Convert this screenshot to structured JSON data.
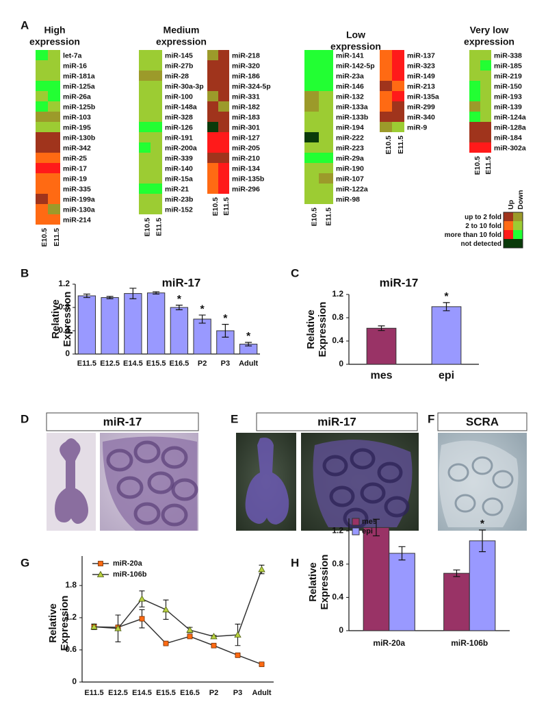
{
  "panel_labels": [
    "A",
    "B",
    "C",
    "D",
    "E",
    "F",
    "G",
    "H"
  ],
  "heatmap": {
    "groups": [
      {
        "title_lines": [
          "High",
          "expression"
        ],
        "blocks": [
          {
            "columns": [
              "E10.5",
              "E11.5"
            ],
            "rows": [
              {
                "label": "let-7a",
                "colors": [
                  "#22ff33",
                  "#9ccc33"
                ]
              },
              {
                "label": "miR-16",
                "colors": [
                  "#9ccc33",
                  "#9ccc33"
                ]
              },
              {
                "label": "miR-181a",
                "colors": [
                  "#9ccc33",
                  "#9ccc33"
                ]
              },
              {
                "label": "miR-125a",
                "colors": [
                  "#22ff33",
                  "#22ff33"
                ]
              },
              {
                "label": "miR-26a",
                "colors": [
                  "#9ccc33",
                  "#22ff33"
                ]
              },
              {
                "label": "miR-125b",
                "colors": [
                  "#22ff33",
                  "#9ccc33"
                ]
              },
              {
                "label": "miR-103",
                "colors": [
                  "#9c9a2a",
                  "#9c9a2a"
                ]
              },
              {
                "label": "miR-195",
                "colors": [
                  "#9ccc33",
                  "#9ccc33"
                ]
              },
              {
                "label": "miR-130b",
                "colors": [
                  "#a0341c",
                  "#a0341c"
                ]
              },
              {
                "label": "miR-342",
                "colors": [
                  "#a0341c",
                  "#a0341c"
                ]
              },
              {
                "label": "miR-25",
                "colors": [
                  "#ff6a13",
                  "#ff6a13"
                ]
              },
              {
                "label": "miR-17",
                "colors": [
                  "#ff1a1a",
                  "#ff1a1a"
                ]
              },
              {
                "label": "miR-19",
                "colors": [
                  "#ff6a13",
                  "#ff6a13"
                ]
              },
              {
                "label": "miR-335",
                "colors": [
                  "#ff6a13",
                  "#ff6a13"
                ]
              },
              {
                "label": "miR-199a",
                "colors": [
                  "#a0341c",
                  "#ff6a13"
                ]
              },
              {
                "label": "miR-130a",
                "colors": [
                  "#ff6a13",
                  "#9c9a2a"
                ]
              },
              {
                "label": "miR-214",
                "colors": [
                  "#ff6a13",
                  "#ff6a13"
                ]
              }
            ]
          }
        ]
      },
      {
        "title_lines": [
          "Medium",
          "expression"
        ],
        "blocks": [
          {
            "columns": [
              "E10.5",
              "E11.5"
            ],
            "rows": [
              {
                "label": "miR-145",
                "colors": [
                  "#9ccc33",
                  "#9ccc33"
                ]
              },
              {
                "label": "miR-27b",
                "colors": [
                  "#9ccc33",
                  "#9ccc33"
                ]
              },
              {
                "label": "miR-28",
                "colors": [
                  "#9c9a2a",
                  "#9c9a2a"
                ]
              },
              {
                "label": "miR-30a-3p",
                "colors": [
                  "#9ccc33",
                  "#9ccc33"
                ]
              },
              {
                "label": "miR-100",
                "colors": [
                  "#9ccc33",
                  "#9ccc33"
                ]
              },
              {
                "label": "miR-148a",
                "colors": [
                  "#9ccc33",
                  "#9ccc33"
                ]
              },
              {
                "label": "miR-328",
                "colors": [
                  "#9ccc33",
                  "#9ccc33"
                ]
              },
              {
                "label": "miR-126",
                "colors": [
                  "#22ff33",
                  "#22ff33"
                ]
              },
              {
                "label": "miR-191",
                "colors": [
                  "#9ccc33",
                  "#9ccc33"
                ]
              },
              {
                "label": "miR-200a",
                "colors": [
                  "#22ff33",
                  "#9ccc33"
                ]
              },
              {
                "label": "miR-339",
                "colors": [
                  "#9ccc33",
                  "#9ccc33"
                ]
              },
              {
                "label": "miR-140",
                "colors": [
                  "#9ccc33",
                  "#9ccc33"
                ]
              },
              {
                "label": "miR-15a",
                "colors": [
                  "#9ccc33",
                  "#9ccc33"
                ]
              },
              {
                "label": "miR-21",
                "colors": [
                  "#22ff33",
                  "#22ff33"
                ]
              },
              {
                "label": "miR-23b",
                "colors": [
                  "#9ccc33",
                  "#9ccc33"
                ]
              },
              {
                "label": "miR-152",
                "colors": [
                  "#9ccc33",
                  "#9ccc33"
                ]
              }
            ]
          },
          {
            "columns": [
              "E10.5",
              "E11.5"
            ],
            "rows": [
              {
                "label": "miR-218",
                "colors": [
                  "#9c9a2a",
                  "#a0341c"
                ]
              },
              {
                "label": "miR-320",
                "colors": [
                  "#a0341c",
                  "#a0341c"
                ]
              },
              {
                "label": "miR-186",
                "colors": [
                  "#a0341c",
                  "#a0341c"
                ]
              },
              {
                "label": "miR-324-5p",
                "colors": [
                  "#a0341c",
                  "#a0341c"
                ]
              },
              {
                "label": "miR-331",
                "colors": [
                  "#9c9a2a",
                  "#a0341c"
                ]
              },
              {
                "label": "miR-182",
                "colors": [
                  "#a0341c",
                  "#9c9a2a"
                ]
              },
              {
                "label": "miR-183",
                "colors": [
                  "#a0341c",
                  "#a0341c"
                ]
              },
              {
                "label": "miR-301",
                "colors": [
                  "#0a3a0a",
                  "#a0341c"
                ]
              },
              {
                "label": "miR-127",
                "colors": [
                  "#ff1a1a",
                  "#ff1a1a"
                ]
              },
              {
                "label": "miR-205",
                "colors": [
                  "#ff1a1a",
                  "#ff1a1a"
                ]
              },
              {
                "label": "miR-210",
                "colors": [
                  "#a0341c",
                  "#a0341c"
                ]
              },
              {
                "label": "miR-134",
                "colors": [
                  "#ff6a13",
                  "#ff1a1a"
                ]
              },
              {
                "label": "miR-135b",
                "colors": [
                  "#ff6a13",
                  "#ff1a1a"
                ]
              },
              {
                "label": "miR-296",
                "colors": [
                  "#ff6a13",
                  "#ff1a1a"
                ]
              }
            ]
          }
        ]
      },
      {
        "title_lines": [
          "Low",
          "expression"
        ],
        "blocks": [
          {
            "columns": [
              "E10.5",
              "E11.5"
            ],
            "rows": [
              {
                "label": "miR-141",
                "colors": [
                  "#22ff33",
                  "#22ff33"
                ]
              },
              {
                "label": "miR-142-5p",
                "colors": [
                  "#22ff33",
                  "#22ff33"
                ]
              },
              {
                "label": "miR-23a",
                "colors": [
                  "#22ff33",
                  "#22ff33"
                ]
              },
              {
                "label": "miR-146",
                "colors": [
                  "#22ff33",
                  "#22ff33"
                ]
              },
              {
                "label": "miR-132",
                "colors": [
                  "#9c9a2a",
                  "#9ccc33"
                ]
              },
              {
                "label": "miR-133a",
                "colors": [
                  "#9c9a2a",
                  "#9ccc33"
                ]
              },
              {
                "label": "miR-133b",
                "colors": [
                  "#9ccc33",
                  "#9ccc33"
                ]
              },
              {
                "label": "miR-194",
                "colors": [
                  "#9ccc33",
                  "#9ccc33"
                ]
              },
              {
                "label": "miR-222",
                "colors": [
                  "#0a3a0a",
                  "#9ccc33"
                ]
              },
              {
                "label": "miR-223",
                "colors": [
                  "#9ccc33",
                  "#9ccc33"
                ]
              },
              {
                "label": "miR-29a",
                "colors": [
                  "#22ff33",
                  "#22ff33"
                ]
              },
              {
                "label": "miR-190",
                "colors": [
                  "#9ccc33",
                  "#9ccc33"
                ]
              },
              {
                "label": "miR-107",
                "colors": [
                  "#9ccc33",
                  "#9c9a2a"
                ]
              },
              {
                "label": "miR-122a",
                "colors": [
                  "#9ccc33",
                  "#9ccc33"
                ]
              },
              {
                "label": "miR-98",
                "colors": [
                  "#9ccc33",
                  "#9ccc33"
                ]
              }
            ]
          },
          {
            "columns": [
              "E10.5",
              "E11.5"
            ],
            "rows": [
              {
                "label": "miR-137",
                "colors": [
                  "#ff6a13",
                  "#ff1a1a"
                ]
              },
              {
                "label": "miR-323",
                "colors": [
                  "#ff6a13",
                  "#ff1a1a"
                ]
              },
              {
                "label": "miR-149",
                "colors": [
                  "#ff6a13",
                  "#ff1a1a"
                ]
              },
              {
                "label": "miR-213",
                "colors": [
                  "#a0341c",
                  "#ff6a13"
                ]
              },
              {
                "label": "miR-135a",
                "colors": [
                  "#ff6a13",
                  "#ff1a1a"
                ]
              },
              {
                "label": "miR-299",
                "colors": [
                  "#ff6a13",
                  "#a0341c"
                ]
              },
              {
                "label": "miR-340",
                "colors": [
                  "#a0341c",
                  "#a0341c"
                ]
              },
              {
                "label": "miR-9",
                "colors": [
                  "#9c9a2a",
                  "#9ccc33"
                ]
              }
            ]
          }
        ]
      },
      {
        "title_lines": [
          "Very low",
          "expression"
        ],
        "blocks": [
          {
            "columns": [
              "E10.5",
              "E11.5"
            ],
            "rows": [
              {
                "label": "miR-338",
                "colors": [
                  "#9ccc33",
                  "#9ccc33"
                ]
              },
              {
                "label": "miR-185",
                "colors": [
                  "#9ccc33",
                  "#22ff33"
                ]
              },
              {
                "label": "miR-219",
                "colors": [
                  "#9ccc33",
                  "#9ccc33"
                ]
              },
              {
                "label": "miR-150",
                "colors": [
                  "#22ff33",
                  "#9ccc33"
                ]
              },
              {
                "label": "miR-193",
                "colors": [
                  "#22ff33",
                  "#9ccc33"
                ]
              },
              {
                "label": "miR-139",
                "colors": [
                  "#9c9a2a",
                  "#9ccc33"
                ]
              },
              {
                "label": "miR-124a",
                "colors": [
                  "#22ff33",
                  "#9ccc33"
                ]
              },
              {
                "label": "miR-128a",
                "colors": [
                  "#a0341c",
                  "#a0341c"
                ]
              },
              {
                "label": "miR-184",
                "colors": [
                  "#a0341c",
                  "#a0341c"
                ]
              },
              {
                "label": "miR-302a",
                "colors": [
                  "#ff1a1a",
                  "#ff1a1a"
                ]
              }
            ]
          }
        ]
      }
    ],
    "legend": {
      "columns": [
        "Up",
        "Down"
      ],
      "rows": [
        {
          "label": "up to 2 fold",
          "colors": [
            "#a0341c",
            "#9c9a2a"
          ]
        },
        {
          "label": "2 to 10 fold",
          "colors": [
            "#ff6a13",
            "#9ccc33"
          ]
        },
        {
          "label": "more than 10 fold",
          "colors": [
            "#ff1a1a",
            "#22ff33"
          ]
        },
        {
          "label": "not detected",
          "colors": [
            "#0a3a0a"
          ]
        }
      ]
    }
  },
  "images": [
    {
      "title": "miR-17"
    },
    {
      "title": "miR-17"
    },
    {
      "title": "SCRA"
    }
  ],
  "chart_data": [
    {
      "type": "bar",
      "title": "miR-17",
      "ylabel_lines": [
        "Relative",
        "Expression"
      ],
      "categories": [
        "E11.5",
        "E12.5",
        "E14.5",
        "E15.5",
        "E16.5",
        "P2",
        "P3",
        "Adult"
      ],
      "values": [
        1.0,
        0.97,
        1.04,
        1.05,
        0.8,
        0.6,
        0.4,
        0.17
      ],
      "errors": [
        0.03,
        0.02,
        0.09,
        0.02,
        0.04,
        0.07,
        0.11,
        0.03
      ],
      "value_annotations": [
        null,
        null,
        null,
        null,
        "*",
        "*",
        "*",
        "*"
      ],
      "color": "#9999ff",
      "ylim": [
        0,
        1.2
      ],
      "yticks": [
        0,
        0.4,
        0.8,
        1.2
      ]
    },
    {
      "type": "bar",
      "title": "miR-17",
      "ylabel_lines": [
        "Relative",
        "Expression"
      ],
      "categories": [
        "mes",
        "epi"
      ],
      "values": [
        0.62,
        0.99
      ],
      "errors": [
        0.04,
        0.07
      ],
      "value_annotations": [
        null,
        "*"
      ],
      "colors": [
        "#993366",
        "#9999ff"
      ],
      "ylim": [
        0,
        1.2
      ],
      "yticks": [
        0,
        0.4,
        0.8,
        1.2
      ]
    },
    {
      "type": "line",
      "ylabel_lines": [
        "Relative",
        "Expression"
      ],
      "categories": [
        "E11.5",
        "E12.5",
        "E14.5",
        "E15.5",
        "E16.5",
        "P2",
        "P3",
        "Adult"
      ],
      "series": [
        {
          "name": "miR-20a",
          "color": "#ff6a13",
          "marker": "square",
          "values": [
            1.03,
            1.02,
            1.18,
            0.72,
            0.85,
            0.68,
            0.5,
            0.33
          ],
          "errors": [
            0.05,
            0.03,
            0.17,
            0.02,
            0.02,
            0.02,
            0.02,
            0.02
          ]
        },
        {
          "name": "miR-106b",
          "color": "#b8d040",
          "marker": "triangle",
          "values": [
            1.03,
            1.0,
            1.55,
            1.35,
            0.97,
            0.85,
            0.88,
            2.1
          ],
          "errors": [
            0.05,
            0.25,
            0.15,
            0.18,
            0.05,
            0.02,
            0.2,
            0.08
          ]
        }
      ],
      "ylim": [
        0,
        2.35
      ],
      "yticks": [
        0,
        0.6,
        1.2,
        1.8
      ],
      "legend": "upper left"
    },
    {
      "type": "grouped_bar",
      "ylabel_lines": [
        "Relative",
        "Expression"
      ],
      "categories": [
        "miR-20a",
        "miR-106b"
      ],
      "series": [
        {
          "name": "mes",
          "color": "#993366",
          "values": [
            1.24,
            0.69
          ],
          "errors": [
            0.1,
            0.04
          ]
        },
        {
          "name": "epi",
          "color": "#9999ff",
          "values": [
            0.93,
            1.08
          ],
          "errors": [
            0.08,
            0.13
          ],
          "value_annotations": [
            null,
            "*"
          ]
        }
      ],
      "ylim": [
        0,
        1.35
      ],
      "yticks": [
        0,
        0.4,
        0.8,
        1.2
      ],
      "legend": "upper left"
    }
  ]
}
